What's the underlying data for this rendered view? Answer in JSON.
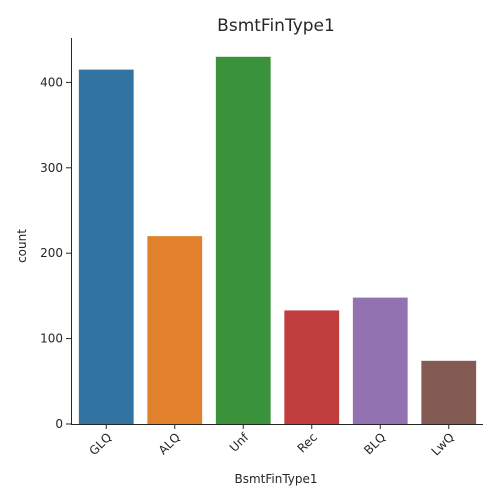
{
  "chart_data": {
    "type": "bar",
    "title": "BsmtFinType1",
    "xlabel": "BsmtFinType1",
    "ylabel": "count",
    "categories": [
      "GLQ",
      "ALQ",
      "Unf",
      "Rec",
      "BLQ",
      "LwQ"
    ],
    "values": [
      415,
      220,
      430,
      133,
      148,
      74
    ],
    "colors": [
      "#3274a1",
      "#e1812c",
      "#3a923a",
      "#c03d3e",
      "#9372b2",
      "#845b53"
    ],
    "yticks": [
      0,
      100,
      200,
      300,
      400
    ],
    "ylim": [
      0,
      452
    ],
    "grid": false,
    "legend": "none"
  }
}
